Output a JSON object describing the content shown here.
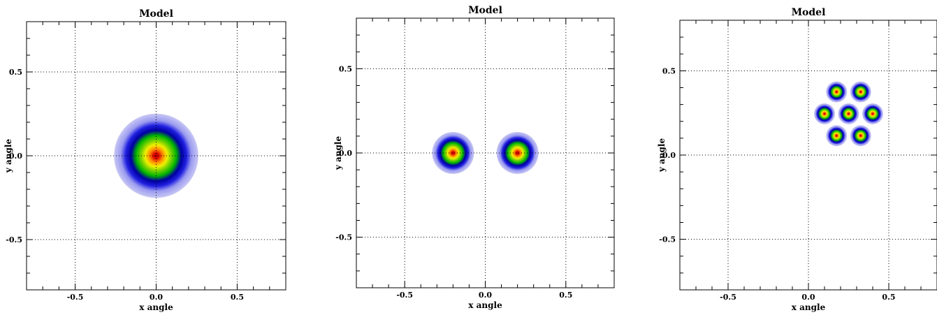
{
  "chart_data": [
    {
      "type": "heatmap",
      "title": "Model",
      "xlabel": "x angle",
      "ylabel": "y angle",
      "xlim": [
        -0.8,
        0.8
      ],
      "ylim": [
        -0.8,
        0.8
      ],
      "xticks": [
        -0.5,
        0.0,
        0.5
      ],
      "yticks": [
        -0.5,
        0.0,
        0.5
      ],
      "xtick_labels": [
        "-0.5",
        "0.0",
        "0.5"
      ],
      "ytick_labels": [
        "-0.5",
        "0.0",
        "0.5"
      ],
      "grid": true,
      "sources": [
        {
          "x": 0.0,
          "y": 0.0,
          "radius": 0.26
        }
      ]
    },
    {
      "type": "heatmap",
      "title": "Model",
      "xlabel": "x angle",
      "ylabel": "y angle",
      "xlim": [
        -0.8,
        0.8
      ],
      "ylim": [
        -0.8,
        0.8
      ],
      "xticks": [
        -0.5,
        0.0,
        0.5
      ],
      "yticks": [
        -0.5,
        0.0,
        0.5
      ],
      "xtick_labels": [
        "-0.5",
        "0.0",
        "0.5"
      ],
      "ytick_labels": [
        "-0.5",
        "0.0",
        "0.5"
      ],
      "grid": true,
      "sources": [
        {
          "x": -0.2,
          "y": 0.0,
          "radius": 0.13
        },
        {
          "x": 0.2,
          "y": 0.0,
          "radius": 0.13
        }
      ]
    },
    {
      "type": "heatmap",
      "title": "Model",
      "xlabel": "x angle",
      "ylabel": "y angle",
      "xlim": [
        -0.8,
        0.8
      ],
      "ylim": [
        -0.8,
        0.8
      ],
      "xticks": [
        -0.5,
        0.0,
        0.5
      ],
      "yticks": [
        -0.5,
        0.0,
        0.5
      ],
      "xtick_labels": [
        "-0.5",
        "0.0",
        "0.5"
      ],
      "ytick_labels": [
        "-0.5",
        "0.0",
        "0.5"
      ],
      "grid": true,
      "sources": [
        {
          "x": 0.175,
          "y": 0.375,
          "radius": 0.065
        },
        {
          "x": 0.325,
          "y": 0.375,
          "radius": 0.065
        },
        {
          "x": 0.1,
          "y": 0.245,
          "radius": 0.065
        },
        {
          "x": 0.25,
          "y": 0.245,
          "radius": 0.065
        },
        {
          "x": 0.4,
          "y": 0.245,
          "radius": 0.065
        },
        {
          "x": 0.175,
          "y": 0.115,
          "radius": 0.065
        },
        {
          "x": 0.325,
          "y": 0.115,
          "radius": 0.065
        }
      ]
    }
  ],
  "colors": {
    "halo": "#c8c8f4",
    "halo_mid": "#9a9af0",
    "blue": "#1f1fe0",
    "dark_blue": "#0000a0",
    "green": "#00b400",
    "lime": "#7ad200",
    "yellow": "#f0f000",
    "orange": "#ff8c00",
    "red": "#dc0000",
    "dark_red": "#b40000",
    "grid": "#000000",
    "frame": "#000000"
  }
}
